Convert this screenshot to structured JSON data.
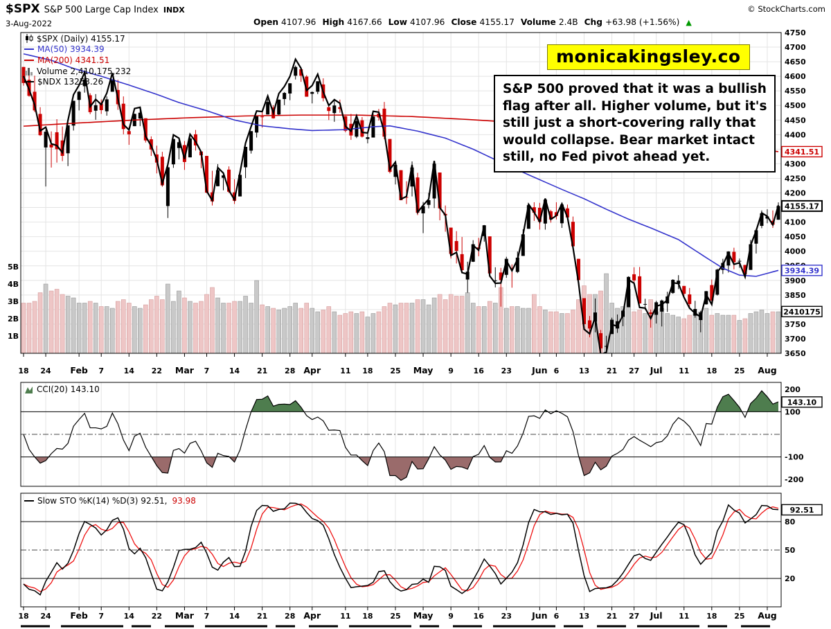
{
  "header": {
    "symbol": "$SPX",
    "name": "S&P 500 Large Cap Index",
    "exchange": "INDX",
    "copyright": "© StockCharts.com",
    "date": "3-Aug-2022",
    "fields": [
      {
        "label": "Open",
        "value": "4107.96"
      },
      {
        "label": "High",
        "value": "4167.66"
      },
      {
        "label": "Low",
        "value": "4107.96"
      },
      {
        "label": "Close",
        "value": "4155.17"
      },
      {
        "label": "Volume",
        "value": "2.4B"
      },
      {
        "label": "Chg",
        "value": "+63.98 (+1.56%)"
      }
    ],
    "chg_direction": "up"
  },
  "overlays": {
    "banner": "monicakingsley.co",
    "banner_bg": "#ffff00",
    "annotation_lines": [
      "S&P 500 proved that it was a bullish",
      "flag after all. Higher volume, but it's",
      "still just a short-covering rally that",
      "would collapse. Bear market intact",
      "still, no Fed pivot ahead yet."
    ]
  },
  "legend": {
    "main": [
      {
        "icon": "candlestick",
        "label": "$SPX (Daily) 4155.17"
      },
      {
        "icon": "line",
        "label": "MA(50) 3934.39"
      },
      {
        "icon": "line",
        "label": "MA(200) 4341.51"
      },
      {
        "icon": "bars",
        "label": "Volume 2,410,175,232"
      },
      {
        "icon": "line",
        "label": "$NDX 13253.26"
      }
    ],
    "cci": "CCI(20) 143.10",
    "sto_prefix": "Slow STO %K(14) %D(3) 92.51,",
    "sto_d": "93.98"
  },
  "colors": {
    "grid": "#e4e4e4",
    "candle_up": "#000000",
    "candle_down": "#cc0000",
    "ma50": "#3333cc",
    "ma200": "#cc0000",
    "ndx": "#000000",
    "vol_up": "#c9c9c9",
    "vol_up_border": "#8a8a8a",
    "vol_down": "#eec6c6",
    "vol_down_border": "#cf9090",
    "cci_pos_fill": "#4e7d4e",
    "cci_neg_fill": "#9a6b6b",
    "sto_k": "#000000",
    "sto_d": "#ee1111",
    "arrow_up": "#009900"
  },
  "value_boxes": {
    "ma200": {
      "text": "4341.51",
      "value": 4341.51
    },
    "price": {
      "text": "4155.17",
      "value": 4155.17
    },
    "ma50": {
      "text": "3934.39",
      "value": 3934.39
    },
    "volume": {
      "text": "2410175",
      "value_billions": 2.41
    },
    "cci": {
      "text": "143.10",
      "value": 143.1
    },
    "sto": {
      "text": "92.51",
      "value": 92.51
    }
  },
  "chart_data": {
    "type": "candlestick",
    "title": "$SPX S&P 500 Large Cap Index (Daily)",
    "date_range": [
      "2022-01-18",
      "2022-08-03"
    ],
    "price_axis": {
      "min": 3650,
      "max": 4750,
      "step": 50
    },
    "volume_axis_labels": [
      "5B",
      "4B",
      "3B",
      "2B",
      "1B"
    ],
    "candles_format": [
      "open",
      "high",
      "low",
      "close",
      "volume_billions"
    ],
    "candles": [
      [
        4632,
        4632,
        4568,
        4577,
        2.9
      ],
      [
        4588,
        4611,
        4530,
        4533,
        2.9
      ],
      [
        4547,
        4602,
        4477,
        4483,
        3.0
      ],
      [
        4471,
        4494,
        4395,
        4398,
        3.5
      ],
      [
        4356,
        4417,
        4222,
        4410,
        4.0
      ],
      [
        4366,
        4411,
        4287,
        4356,
        3.6
      ],
      [
        4408,
        4453,
        4304,
        4350,
        3.7
      ],
      [
        4380,
        4428,
        4309,
        4327,
        3.4
      ],
      [
        4336,
        4432,
        4292,
        4432,
        3.3
      ],
      [
        4431,
        4516,
        4414,
        4516,
        3.2
      ],
      [
        4519,
        4550,
        4483,
        4547,
        2.9
      ],
      [
        4566,
        4595,
        4544,
        4589,
        2.9
      ],
      [
        4535,
        4542,
        4470,
        4477,
        3.0
      ],
      [
        4482,
        4539,
        4451,
        4501,
        2.9
      ],
      [
        4506,
        4521,
        4471,
        4484,
        2.7
      ],
      [
        4480,
        4531,
        4465,
        4521,
        2.7
      ],
      [
        4547,
        4590,
        4547,
        4587,
        2.6
      ],
      [
        4553,
        4588,
        4485,
        4504,
        3.0
      ],
      [
        4506,
        4531,
        4401,
        4419,
        3.1
      ],
      [
        4412,
        4426,
        4365,
        4401,
        2.9
      ],
      [
        4429,
        4472,
        4429,
        4471,
        2.7
      ],
      [
        4455,
        4489,
        4429,
        4475,
        2.6
      ],
      [
        4456,
        4456,
        4373,
        4380,
        2.8
      ],
      [
        4384,
        4394,
        4327,
        4349,
        3.1
      ],
      [
        4332,
        4362,
        4267,
        4304,
        3.3
      ],
      [
        4324,
        4341,
        4221,
        4226,
        3.1
      ],
      [
        4155,
        4294,
        4114,
        4288,
        4.0
      ],
      [
        4298,
        4385,
        4286,
        4385,
        3.0
      ],
      [
        4354,
        4388,
        4315,
        4374,
        3.6
      ],
      [
        4364,
        4378,
        4279,
        4306,
        3.2
      ],
      [
        4322,
        4401,
        4322,
        4387,
        3.0
      ],
      [
        4401,
        4416,
        4345,
        4363,
        2.9
      ],
      [
        4342,
        4342,
        4285,
        4329,
        3.0
      ],
      [
        4327,
        4327,
        4199,
        4201,
        3.4
      ],
      [
        4202,
        4276,
        4157,
        4171,
        3.8
      ],
      [
        4223,
        4299,
        4223,
        4278,
        3.2
      ],
      [
        4252,
        4268,
        4209,
        4260,
        2.9
      ],
      [
        4280,
        4291,
        4200,
        4204,
        2.9
      ],
      [
        4202,
        4247,
        4162,
        4173,
        3.0
      ],
      [
        4188,
        4271,
        4188,
        4262,
        3.0
      ],
      [
        4288,
        4358,
        4251,
        4358,
        3.3
      ],
      [
        4345,
        4412,
        4335,
        4412,
        2.9
      ],
      [
        4407,
        4465,
        4390,
        4463,
        4.2
      ],
      [
        4462,
        4482,
        4424,
        4461,
        2.8
      ],
      [
        4469,
        4522,
        4469,
        4512,
        2.7
      ],
      [
        4493,
        4501,
        4455,
        4456,
        2.6
      ],
      [
        4469,
        4520,
        4465,
        4520,
        2.5
      ],
      [
        4522,
        4546,
        4501,
        4543,
        2.6
      ],
      [
        4541,
        4576,
        4518,
        4576,
        2.7
      ],
      [
        4602,
        4637,
        4589,
        4632,
        2.9
      ],
      [
        4624,
        4627,
        4581,
        4602,
        2.6
      ],
      [
        4599,
        4604,
        4530,
        4530,
        2.9
      ],
      [
        4540,
        4548,
        4507,
        4546,
        2.6
      ],
      [
        4547,
        4583,
        4539,
        4583,
        2.4
      ],
      [
        4572,
        4593,
        4514,
        4525,
        2.5
      ],
      [
        4494,
        4503,
        4450,
        4481,
        2.7
      ],
      [
        4474,
        4521,
        4444,
        4500,
        2.4
      ],
      [
        4494,
        4520,
        4475,
        4488,
        2.2
      ],
      [
        4463,
        4464,
        4408,
        4413,
        2.3
      ],
      [
        4437,
        4471,
        4382,
        4397,
        2.4
      ],
      [
        4393,
        4454,
        4388,
        4447,
        2.3
      ],
      [
        4449,
        4460,
        4390,
        4393,
        2.4
      ],
      [
        4385,
        4410,
        4370,
        4391,
        2.1
      ],
      [
        4390,
        4471,
        4390,
        4462,
        2.3
      ],
      [
        4472,
        4488,
        4448,
        4459,
        2.4
      ],
      [
        4489,
        4512,
        4384,
        4393,
        2.7
      ],
      [
        4385,
        4385,
        4267,
        4272,
        2.9
      ],
      [
        4255,
        4299,
        4229,
        4296,
        2.8
      ],
      [
        4278,
        4278,
        4175,
        4175,
        2.9
      ],
      [
        4186,
        4240,
        4162,
        4184,
        2.9
      ],
      [
        4222,
        4308,
        4188,
        4287,
        2.9
      ],
      [
        4253,
        4269,
        4124,
        4132,
        3.1
      ],
      [
        4130,
        4169,
        4062,
        4155,
        3.1
      ],
      [
        4159,
        4200,
        4147,
        4175,
        2.8
      ],
      [
        4181,
        4307,
        4148,
        4300,
        3.2
      ],
      [
        4270,
        4270,
        4106,
        4147,
        3.4
      ],
      [
        4128,
        4157,
        4067,
        4123,
        3.1
      ],
      [
        4081,
        4081,
        3975,
        3991,
        3.4
      ],
      [
        4035,
        4069,
        3958,
        4001,
        3.3
      ],
      [
        3990,
        4049,
        3928,
        3935,
        3.3
      ],
      [
        3903,
        3964,
        3858,
        3930,
        3.5
      ],
      [
        3964,
        4038,
        3963,
        4024,
        2.9
      ],
      [
        4013,
        4046,
        3983,
        4008,
        2.7
      ],
      [
        4052,
        4090,
        4033,
        4089,
        2.7
      ],
      [
        4051,
        4051,
        3911,
        3924,
        3.0
      ],
      [
        3899,
        3945,
        3876,
        3900,
        2.9
      ],
      [
        3927,
        3943,
        3810,
        3901,
        3.8
      ],
      [
        3919,
        3981,
        3909,
        3974,
        2.6
      ],
      [
        3942,
        3955,
        3875,
        3941,
        2.7
      ],
      [
        3929,
        3999,
        3925,
        3978,
        2.7
      ],
      [
        3984,
        4075,
        3984,
        4058,
        2.6
      ],
      [
        4077,
        4158,
        4077,
        4158,
        2.6
      ],
      [
        4151,
        4168,
        4104,
        4132,
        3.4
      ],
      [
        4149,
        4166,
        4074,
        4101,
        2.7
      ],
      [
        4095,
        4177,
        4074,
        4177,
        2.5
      ],
      [
        4137,
        4142,
        4098,
        4109,
        2.4
      ],
      [
        4134,
        4168,
        4109,
        4121,
        2.4
      ],
      [
        4096,
        4164,
        4080,
        4160,
        2.3
      ],
      [
        4147,
        4160,
        4107,
        4116,
        2.3
      ],
      [
        4101,
        4119,
        4017,
        4017,
        2.5
      ],
      [
        3974,
        3974,
        3900,
        3901,
        3.1
      ],
      [
        3839,
        3839,
        3734,
        3750,
        3.9
      ],
      [
        3763,
        3778,
        3705,
        3735,
        3.4
      ],
      [
        3759,
        3838,
        3722,
        3790,
        3.4
      ],
      [
        3719,
        3730,
        3639,
        3667,
        3.6
      ],
      [
        3673,
        3710,
        3636,
        3675,
        4.6
      ],
      [
        3716,
        3772,
        3716,
        3765,
        2.9
      ],
      [
        3735,
        3783,
        3720,
        3760,
        2.6
      ],
      [
        3775,
        3800,
        3743,
        3796,
        2.7
      ],
      [
        3808,
        3914,
        3808,
        3912,
        3.7
      ],
      [
        3921,
        3945,
        3892,
        3900,
        2.4
      ],
      [
        3914,
        3946,
        3820,
        3821,
        2.5
      ],
      [
        3818,
        3837,
        3799,
        3819,
        2.3
      ],
      [
        3790,
        3800,
        3738,
        3785,
        3.1
      ],
      [
        3782,
        3830,
        3752,
        3825,
        2.4
      ],
      [
        3793,
        3834,
        3742,
        3831,
        2.6
      ],
      [
        3821,
        3861,
        3792,
        3845,
        2.3
      ],
      [
        3857,
        3904,
        3854,
        3902,
        2.2
      ],
      [
        3888,
        3918,
        3870,
        3899,
        2.1
      ],
      [
        3881,
        3881,
        3847,
        3854,
        2.0
      ],
      [
        3852,
        3874,
        3803,
        3819,
        2.2
      ],
      [
        3779,
        3830,
        3772,
        3802,
        2.3
      ],
      [
        3764,
        3796,
        3722,
        3790,
        2.4
      ],
      [
        3818,
        3864,
        3817,
        3863,
        2.6
      ],
      [
        3884,
        3903,
        3819,
        3831,
        2.2
      ],
      [
        3851,
        3940,
        3848,
        3937,
        2.3
      ],
      [
        3936,
        3974,
        3922,
        3960,
        2.2
      ],
      [
        3951,
        4000,
        3927,
        3999,
        2.2
      ],
      [
        3998,
        4012,
        3938,
        3962,
        2.2
      ],
      [
        3965,
        3975,
        3943,
        3967,
        1.9
      ],
      [
        3953,
        3953,
        3910,
        3921,
        2.0
      ],
      [
        3936,
        4039,
        3936,
        4024,
        2.3
      ],
      [
        4026,
        4078,
        3992,
        4072,
        2.4
      ],
      [
        4087,
        4140,
        4079,
        4130,
        2.5
      ],
      [
        4112,
        4144,
        4096,
        4119,
        2.3
      ],
      [
        4104,
        4140,
        4080,
        4091,
        2.4
      ],
      [
        4107.96,
        4167.66,
        4107.96,
        4155.17,
        2.4
      ]
    ],
    "ma50_keyframes": [
      [
        0,
        4677
      ],
      [
        5,
        4655
      ],
      [
        9,
        4627
      ],
      [
        14,
        4600
      ],
      [
        19,
        4570
      ],
      [
        24,
        4538
      ],
      [
        28,
        4510
      ],
      [
        33,
        4482
      ],
      [
        38,
        4450
      ],
      [
        43,
        4430
      ],
      [
        48,
        4420
      ],
      [
        52,
        4414
      ],
      [
        58,
        4417
      ],
      [
        63,
        4427
      ],
      [
        66,
        4430
      ],
      [
        71,
        4412
      ],
      [
        76,
        4388
      ],
      [
        81,
        4350
      ],
      [
        86,
        4305
      ],
      [
        91,
        4262
      ],
      [
        97,
        4212
      ],
      [
        101,
        4180
      ],
      [
        105,
        4144
      ],
      [
        109,
        4110
      ],
      [
        113,
        4080
      ],
      [
        118,
        4040
      ],
      [
        123,
        3978
      ],
      [
        126,
        3942
      ],
      [
        129,
        3918
      ],
      [
        132,
        3914
      ],
      [
        136,
        3934.39
      ]
    ],
    "ma200_keyframes": [
      [
        0,
        4429
      ],
      [
        10,
        4440
      ],
      [
        20,
        4450
      ],
      [
        30,
        4458
      ],
      [
        40,
        4464
      ],
      [
        50,
        4467
      ],
      [
        60,
        4467
      ],
      [
        70,
        4462
      ],
      [
        80,
        4452
      ],
      [
        90,
        4440
      ],
      [
        100,
        4424
      ],
      [
        105,
        4414
      ],
      [
        110,
        4404
      ],
      [
        115,
        4394
      ],
      [
        120,
        4382
      ],
      [
        125,
        4369
      ],
      [
        130,
        4356
      ],
      [
        136,
        4341.51
      ]
    ],
    "ndx_overlay": {
      "pivot": 4100,
      "factor": 1.05,
      "last_value": "13253.26"
    },
    "date_ticks": [
      {
        "label": "18",
        "i": 0
      },
      {
        "label": "24",
        "i": 4
      },
      {
        "label": "Feb",
        "i": 10,
        "bold": true
      },
      {
        "label": "7",
        "i": 14
      },
      {
        "label": "14",
        "i": 19
      },
      {
        "label": "22",
        "i": 24
      },
      {
        "label": "Mar",
        "i": 29,
        "bold": true
      },
      {
        "label": "7",
        "i": 33
      },
      {
        "label": "14",
        "i": 38
      },
      {
        "label": "21",
        "i": 43
      },
      {
        "label": "28",
        "i": 48
      },
      {
        "label": "Apr",
        "i": 52,
        "bold": true
      },
      {
        "label": "11",
        "i": 58
      },
      {
        "label": "18",
        "i": 62
      },
      {
        "label": "25",
        "i": 67
      },
      {
        "label": "May",
        "i": 72,
        "bold": true
      },
      {
        "label": "9",
        "i": 77
      },
      {
        "label": "16",
        "i": 82
      },
      {
        "label": "23",
        "i": 87
      },
      {
        "label": "Jun",
        "i": 93,
        "bold": true
      },
      {
        "label": "6",
        "i": 96
      },
      {
        "label": "13",
        "i": 101
      },
      {
        "label": "21",
        "i": 106
      },
      {
        "label": "27",
        "i": 110
      },
      {
        "label": "Jul",
        "i": 114,
        "bold": true
      },
      {
        "label": "11",
        "i": 119
      },
      {
        "label": "18",
        "i": 124
      },
      {
        "label": "25",
        "i": 129
      },
      {
        "label": "Aug",
        "i": 134,
        "bold": true
      }
    ],
    "cci": {
      "label": "CCI(20)",
      "last": 143.1,
      "ticks": [
        200,
        100,
        -100,
        -200
      ],
      "upper": 100,
      "lower": -100
    },
    "sto": {
      "label": "Slow STO %K(14) %D(3)",
      "k_last": 92.51,
      "d_last": 93.98,
      "ticks": [
        80,
        50,
        20
      ],
      "upper": 80,
      "mid": 50,
      "lower": 20
    }
  }
}
